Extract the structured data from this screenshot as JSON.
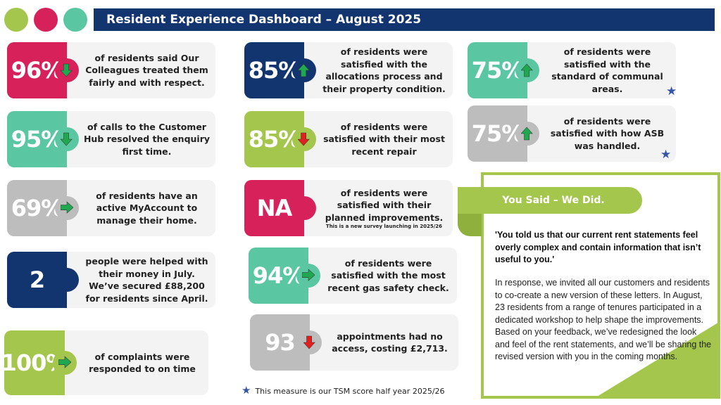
{
  "header": {
    "title": "Resident Experience Dashboard – August 2025",
    "dot_colors": [
      "#a4c64c",
      "#d6215b",
      "#5bc6a2"
    ],
    "bar_color": "#12346f"
  },
  "colors": {
    "pink": "#d6215b",
    "teal": "#5bc6a2",
    "grey": "#bdbdbd",
    "navy": "#12346f",
    "green": "#a4c64c",
    "arrow_green": "#1fa84f",
    "arrow_red": "#e02020",
    "star": "#3556a6"
  },
  "cards": [
    {
      "value": "96%",
      "color": "pink",
      "arrow": "down-green",
      "text": "of residents said Our Colleagues treated them fairly and with respect."
    },
    {
      "value": "95%",
      "color": "teal",
      "arrow": "down-green",
      "text": "of calls to the Customer Hub resolved the enquiry first time."
    },
    {
      "value": "69%",
      "color": "grey",
      "arrow": "right-green",
      "text": "of residents have an active MyAccount to manage their home."
    },
    {
      "value": "2",
      "color": "navy",
      "arrow": "none",
      "text": "people were helped with their money in July. We’ve secured £88,200 for residents since April."
    },
    {
      "value": "100%",
      "color": "green",
      "arrow": "right-green",
      "text": "of complaints were responded to on time"
    },
    {
      "value": "85%",
      "color": "navy",
      "arrow": "up-green",
      "text": "of residents were satisfied with the allocations process and their property condition."
    },
    {
      "value": "85%",
      "color": "green",
      "arrow": "down-red",
      "text": "of residents were satisfied with their most recent repair"
    },
    {
      "value": "NA",
      "color": "pink",
      "arrow": "none",
      "text": "of residents were satisfied with their planned improvements.",
      "note": "This is a new survey launching in 2025/26"
    },
    {
      "value": "94%",
      "color": "teal",
      "arrow": "right-green",
      "text": "of residents were satisfied with the most recent gas safety check."
    },
    {
      "value": "93",
      "color": "grey",
      "arrow": "down-red",
      "text": "appointments had no access, costing £2,713."
    },
    {
      "value": "75%",
      "color": "teal",
      "arrow": "up-green",
      "text": "of residents were satisfied with the standard of communal areas.",
      "tsm": true
    },
    {
      "value": "75%",
      "color": "grey",
      "arrow": "up-green",
      "text": "of residents were satisfied with how ASB was handled.",
      "tsm": true
    }
  ],
  "you_said": {
    "title": "You Said – We Did.",
    "quote": "'You told us that our current rent statements feel overly complex and contain information that isn’t useful to you.'",
    "body": "In response, we invited all our customers and residents to co-create a new version of these letters. In August, 23 residents from a range of tenures participated in a dedicated workshop to help shape the improvements. Based on your feedback, we’ve redesigned the look and feel of the rent statements, and we’ll be sharing the revised version with you in the coming months."
  },
  "footnote": "This measure is our TSM score half year 2025/26"
}
